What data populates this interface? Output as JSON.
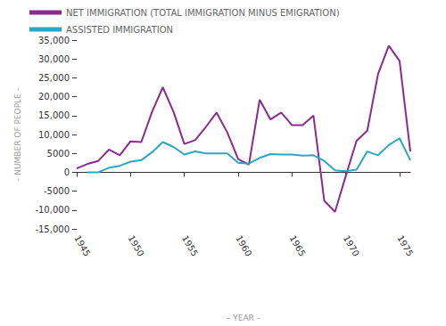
{
  "chart_data": {
    "type": "line",
    "x": [
      1945,
      1946,
      1947,
      1948,
      1949,
      1950,
      1951,
      1952,
      1953,
      1954,
      1955,
      1956,
      1957,
      1958,
      1959,
      1960,
      1961,
      1962,
      1963,
      1964,
      1965,
      1966,
      1967,
      1968,
      1969,
      1970,
      1971,
      1972,
      1973,
      1974,
      1975,
      1976
    ],
    "series": [
      {
        "name": "NET IMMIGRATION (TOTAL IMMIGRATION MINUS EMIGRATION)",
        "color": "#8b2a8f",
        "values": [
          1000,
          2200,
          3000,
          6000,
          4500,
          8200,
          8000,
          16000,
          22500,
          16000,
          7500,
          8500,
          12000,
          15800,
          10500,
          3500,
          2000,
          19200,
          14000,
          15800,
          12500,
          12500,
          15000,
          -7500,
          -10500,
          -1000,
          8300,
          11000,
          26000,
          33500,
          29500,
          5500
        ]
      },
      {
        "name": "ASSISTED IMMIGRATION",
        "color": "#2ba6c4",
        "values": [
          null,
          0,
          0,
          1200,
          1700,
          2800,
          3200,
          5300,
          8000,
          6700,
          4700,
          5500,
          5000,
          5000,
          5000,
          2500,
          2300,
          3800,
          4800,
          4700,
          4700,
          4400,
          4500,
          3000,
          500,
          300,
          700,
          5500,
          4500,
          7200,
          9000,
          3200
        ]
      }
    ],
    "x_label": "– YEAR –",
    "y_label": "– NUMBER OF PEOPLE –",
    "xlim": [
      1945,
      1976
    ],
    "xticks": [
      1945,
      1950,
      1955,
      1960,
      1965,
      1970,
      1975
    ],
    "ylim": [
      -15000,
      35000
    ],
    "yticks": [
      {
        "value": -15000,
        "label": "-15,000"
      },
      {
        "value": -10000,
        "label": "-10,000"
      },
      -5000,
      0,
      5000,
      {
        "value": 10000,
        "label": "10,000"
      },
      {
        "value": 15000,
        "label": "15,000"
      },
      {
        "value": 20000,
        "label": "20,000"
      },
      {
        "value": 25000,
        "label": "25,000"
      },
      {
        "value": 30000,
        "label": "30,000"
      },
      {
        "value": 35000,
        "label": "35,000"
      }
    ],
    "grid": false,
    "legend": "upper left",
    "marker": "none"
  }
}
